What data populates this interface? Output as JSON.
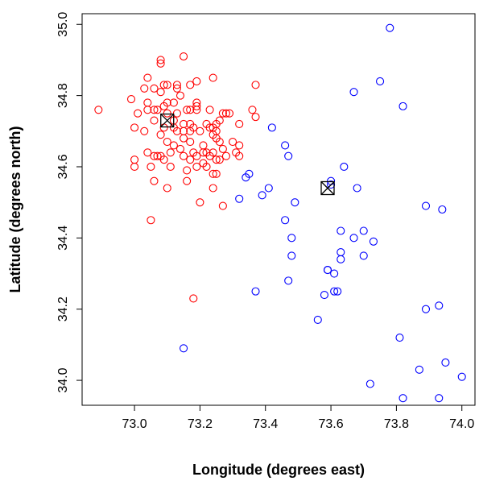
{
  "chart_data": {
    "type": "scatter",
    "xlabel": "Longitude (degrees east)",
    "ylabel": "Latitude (degrees north)",
    "xlim": [
      72.84,
      74.04
    ],
    "ylim": [
      33.93,
      35.03
    ],
    "x_ticks": [
      "73.0",
      "73.2",
      "73.4",
      "73.6",
      "73.8",
      "74.0"
    ],
    "x_tick_values": [
      73.0,
      73.2,
      73.4,
      73.6,
      73.8,
      74.0
    ],
    "y_ticks": [
      "34.0",
      "34.2",
      "34.4",
      "34.6",
      "34.8",
      "35.0"
    ],
    "y_tick_values": [
      34.0,
      34.2,
      34.4,
      34.6,
      34.8,
      35.0
    ],
    "grid": false,
    "series": [
      {
        "color": "#ff0000",
        "marker": "open-circle",
        "points": [
          [
            72.89,
            34.76
          ],
          [
            72.99,
            34.79
          ],
          [
            73.0,
            34.71
          ],
          [
            73.0,
            34.62
          ],
          [
            73.0,
            34.6
          ],
          [
            73.01,
            34.75
          ],
          [
            73.03,
            34.7
          ],
          [
            73.03,
            34.82
          ],
          [
            73.04,
            34.85
          ],
          [
            73.04,
            34.78
          ],
          [
            73.04,
            34.76
          ],
          [
            73.04,
            34.64
          ],
          [
            73.05,
            34.6
          ],
          [
            73.05,
            34.45
          ],
          [
            73.06,
            34.73
          ],
          [
            73.06,
            34.82
          ],
          [
            73.06,
            34.76
          ],
          [
            73.06,
            34.63
          ],
          [
            73.06,
            34.56
          ],
          [
            73.07,
            34.63
          ],
          [
            73.07,
            34.76
          ],
          [
            73.08,
            34.9
          ],
          [
            73.08,
            34.89
          ],
          [
            73.08,
            34.81
          ],
          [
            73.08,
            34.69
          ],
          [
            73.08,
            34.63
          ],
          [
            73.09,
            34.83
          ],
          [
            73.09,
            34.77
          ],
          [
            73.09,
            34.71
          ],
          [
            73.09,
            34.62
          ],
          [
            73.1,
            34.83
          ],
          [
            73.1,
            34.75
          ],
          [
            73.1,
            34.78
          ],
          [
            73.1,
            34.67
          ],
          [
            73.1,
            34.54
          ],
          [
            73.11,
            34.64
          ],
          [
            73.11,
            34.6
          ],
          [
            73.12,
            34.78
          ],
          [
            73.12,
            34.73
          ],
          [
            73.12,
            34.71
          ],
          [
            73.12,
            34.66
          ],
          [
            73.13,
            34.83
          ],
          [
            73.13,
            34.82
          ],
          [
            73.13,
            34.75
          ],
          [
            73.13,
            34.7
          ],
          [
            73.14,
            34.65
          ],
          [
            73.14,
            34.8
          ],
          [
            73.15,
            34.91
          ],
          [
            73.15,
            34.72
          ],
          [
            73.15,
            34.7
          ],
          [
            73.15,
            34.68
          ],
          [
            73.15,
            34.63
          ],
          [
            73.16,
            34.76
          ],
          [
            73.16,
            34.59
          ],
          [
            73.16,
            34.56
          ],
          [
            73.17,
            34.83
          ],
          [
            73.17,
            34.76
          ],
          [
            73.17,
            34.72
          ],
          [
            73.17,
            34.7
          ],
          [
            73.17,
            34.67
          ],
          [
            73.17,
            34.62
          ],
          [
            73.18,
            34.23
          ],
          [
            73.18,
            34.71
          ],
          [
            73.18,
            34.64
          ],
          [
            73.19,
            34.84
          ],
          [
            73.19,
            34.78
          ],
          [
            73.19,
            34.77
          ],
          [
            73.19,
            34.76
          ],
          [
            73.19,
            34.63
          ],
          [
            73.19,
            34.6
          ],
          [
            73.2,
            34.7
          ],
          [
            73.2,
            34.5
          ],
          [
            73.21,
            34.66
          ],
          [
            73.21,
            34.64
          ],
          [
            73.21,
            34.61
          ],
          [
            73.22,
            34.72
          ],
          [
            73.22,
            34.64
          ],
          [
            73.22,
            34.6
          ],
          [
            73.23,
            34.76
          ],
          [
            73.23,
            34.71
          ],
          [
            73.23,
            34.63
          ],
          [
            73.24,
            34.85
          ],
          [
            73.24,
            34.71
          ],
          [
            73.24,
            34.69
          ],
          [
            73.24,
            34.64
          ],
          [
            73.24,
            34.58
          ],
          [
            73.24,
            34.54
          ],
          [
            73.25,
            34.72
          ],
          [
            73.25,
            34.7
          ],
          [
            73.25,
            34.68
          ],
          [
            73.25,
            34.62
          ],
          [
            73.25,
            34.58
          ],
          [
            73.26,
            34.73
          ],
          [
            73.26,
            34.67
          ],
          [
            73.26,
            34.62
          ],
          [
            73.27,
            34.75
          ],
          [
            73.27,
            34.65
          ],
          [
            73.27,
            34.49
          ],
          [
            73.28,
            34.75
          ],
          [
            73.28,
            34.63
          ],
          [
            73.29,
            34.75
          ],
          [
            73.3,
            34.67
          ],
          [
            73.31,
            34.64
          ],
          [
            73.32,
            34.72
          ],
          [
            73.32,
            34.66
          ],
          [
            73.32,
            34.63
          ],
          [
            73.36,
            34.76
          ],
          [
            73.37,
            34.83
          ],
          [
            73.37,
            34.74
          ]
        ]
      },
      {
        "color": "#0000ff",
        "marker": "open-circle",
        "points": [
          [
            73.15,
            34.09
          ],
          [
            73.32,
            34.51
          ],
          [
            73.34,
            34.57
          ],
          [
            73.35,
            34.58
          ],
          [
            73.37,
            34.25
          ],
          [
            73.39,
            34.52
          ],
          [
            73.41,
            34.54
          ],
          [
            73.42,
            34.71
          ],
          [
            73.46,
            34.66
          ],
          [
            73.46,
            34.45
          ],
          [
            73.47,
            34.63
          ],
          [
            73.47,
            34.28
          ],
          [
            73.48,
            34.4
          ],
          [
            73.48,
            34.35
          ],
          [
            73.49,
            34.5
          ],
          [
            73.56,
            34.17
          ],
          [
            73.58,
            34.24
          ],
          [
            73.59,
            34.31
          ],
          [
            73.59,
            34.31
          ],
          [
            73.6,
            34.56
          ],
          [
            73.6,
            34.55
          ],
          [
            73.61,
            34.3
          ],
          [
            73.61,
            34.25
          ],
          [
            73.62,
            34.25
          ],
          [
            73.63,
            34.42
          ],
          [
            73.63,
            34.36
          ],
          [
            73.63,
            34.34
          ],
          [
            73.64,
            34.6
          ],
          [
            73.67,
            34.81
          ],
          [
            73.67,
            34.4
          ],
          [
            73.68,
            34.54
          ],
          [
            73.7,
            34.42
          ],
          [
            73.7,
            34.35
          ],
          [
            73.72,
            33.99
          ],
          [
            73.73,
            34.39
          ],
          [
            73.75,
            34.84
          ],
          [
            73.78,
            34.99
          ],
          [
            73.81,
            34.12
          ],
          [
            73.82,
            34.77
          ],
          [
            73.82,
            33.95
          ],
          [
            73.87,
            34.03
          ],
          [
            73.89,
            34.49
          ],
          [
            73.89,
            34.2
          ],
          [
            73.93,
            34.21
          ],
          [
            73.93,
            33.95
          ],
          [
            73.94,
            34.48
          ],
          [
            73.95,
            34.05
          ],
          [
            74.0,
            34.01
          ]
        ]
      }
    ],
    "centroids": [
      {
        "color": "#000000",
        "marker": "boxed-x",
        "x": 73.1,
        "y": 34.73
      },
      {
        "color": "#000000",
        "marker": "boxed-x",
        "x": 73.59,
        "y": 34.54
      }
    ]
  }
}
